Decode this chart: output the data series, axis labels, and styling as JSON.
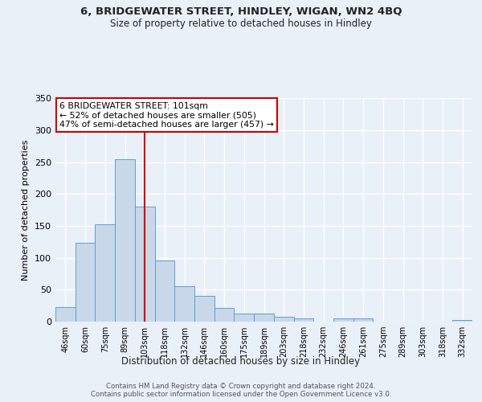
{
  "title1": "6, BRIDGEWATER STREET, HINDLEY, WIGAN, WN2 4BQ",
  "title2": "Size of property relative to detached houses in Hindley",
  "xlabel": "Distribution of detached houses by size in Hindley",
  "ylabel": "Number of detached properties",
  "categories": [
    "46sqm",
    "60sqm",
    "75sqm",
    "89sqm",
    "103sqm",
    "118sqm",
    "132sqm",
    "146sqm",
    "160sqm",
    "175sqm",
    "189sqm",
    "203sqm",
    "218sqm",
    "232sqm",
    "246sqm",
    "261sqm",
    "275sqm",
    "289sqm",
    "303sqm",
    "318sqm",
    "332sqm"
  ],
  "values": [
    23,
    124,
    152,
    255,
    180,
    96,
    55,
    40,
    21,
    13,
    13,
    7,
    5,
    0,
    5,
    5,
    0,
    0,
    0,
    0,
    3
  ],
  "bar_color": "#c8d8e8",
  "bar_edge_color": "#5a9fd4",
  "vline_x": 4,
  "vline_color": "#cc0000",
  "annotation_text": "6 BRIDGEWATER STREET: 101sqm\n← 52% of detached houses are smaller (505)\n47% of semi-detached houses are larger (457) →",
  "annotation_box_color": "#ffffff",
  "annotation_box_edge": "#cc0000",
  "bg_color": "#eaf0f8",
  "plot_bg_color": "#eaf0f8",
  "grid_color": "#ffffff",
  "footer": "Contains HM Land Registry data © Crown copyright and database right 2024.\nContains public sector information licensed under the Open Government Licence v3.0.",
  "ylim": [
    0,
    350
  ],
  "yticks": [
    0,
    50,
    100,
    150,
    200,
    250,
    300,
    350
  ]
}
